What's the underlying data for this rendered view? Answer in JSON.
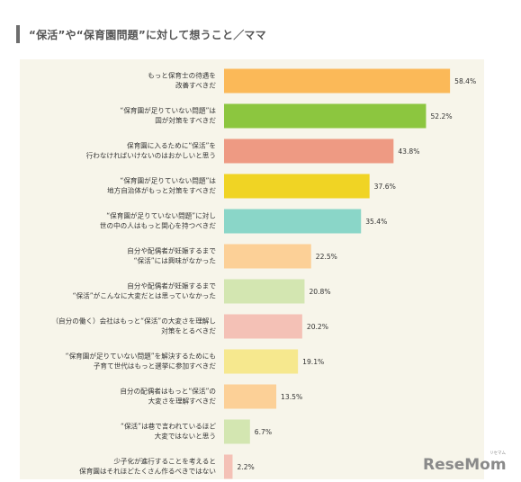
{
  "title": "“保活”や“保育園問題”に対して想うこと／ママ",
  "chart_data": {
    "type": "bar",
    "orientation": "horizontal",
    "title": "“保活”や“保育園問題”に対して想うこと／ママ",
    "categories": [
      [
        "もっと保育士の待遇を",
        "改善すべきだ"
      ],
      [
        "“保育園が足りていない問題”は",
        "国が対策をすべきだ"
      ],
      [
        "保育園に入るために“保活”を",
        "行わなければいけないのはおかしいと思う"
      ],
      [
        "“保育園が足りていない問題”は",
        "地方自治体がもっと対策をすべきだ"
      ],
      [
        "“保育園が足りていない問題”に対し",
        "世の中の人はもっと関心を持つべきだ"
      ],
      [
        "自分や配偶者が妊娠するまで",
        "“保活”には興味がなかった"
      ],
      [
        "自分や配偶者が妊娠するまで",
        "“保活”がこんなに大変だとは思っていなかった"
      ],
      [
        "（自分の働く）会社はもっと“保活”の大変さを理解し",
        "対策をとるべきだ"
      ],
      [
        "“保育園が足りていない問題”を解決するためにも",
        "子育て世代はもっと選挙に参加すべきだ"
      ],
      [
        "自分の配偶者はもっと“保活”の",
        "大変さを理解すべきだ"
      ],
      [
        "“保活”は巷で言われているほど",
        "大変ではないと思う"
      ],
      [
        "少子化が進行することを考えると",
        "保育園はそれほどたくさん作るべきではない"
      ]
    ],
    "values": [
      58.4,
      52.2,
      43.8,
      37.6,
      35.4,
      22.5,
      20.8,
      20.2,
      19.1,
      13.5,
      6.7,
      2.2
    ],
    "value_suffix": "%",
    "colors": [
      "#fbb958",
      "#8cc63f",
      "#ee9a83",
      "#f0d424",
      "#8ad6c8",
      "#fcd097",
      "#d3e6b1",
      "#f4c1b6",
      "#f6e88e",
      "#fcd097",
      "#d3e6b1",
      "#f4c1b6"
    ],
    "xlim": [
      0,
      60
    ],
    "grid": false,
    "legend": "none"
  },
  "logo": {
    "text": "ReseMom",
    "sub": "リセマム"
  }
}
